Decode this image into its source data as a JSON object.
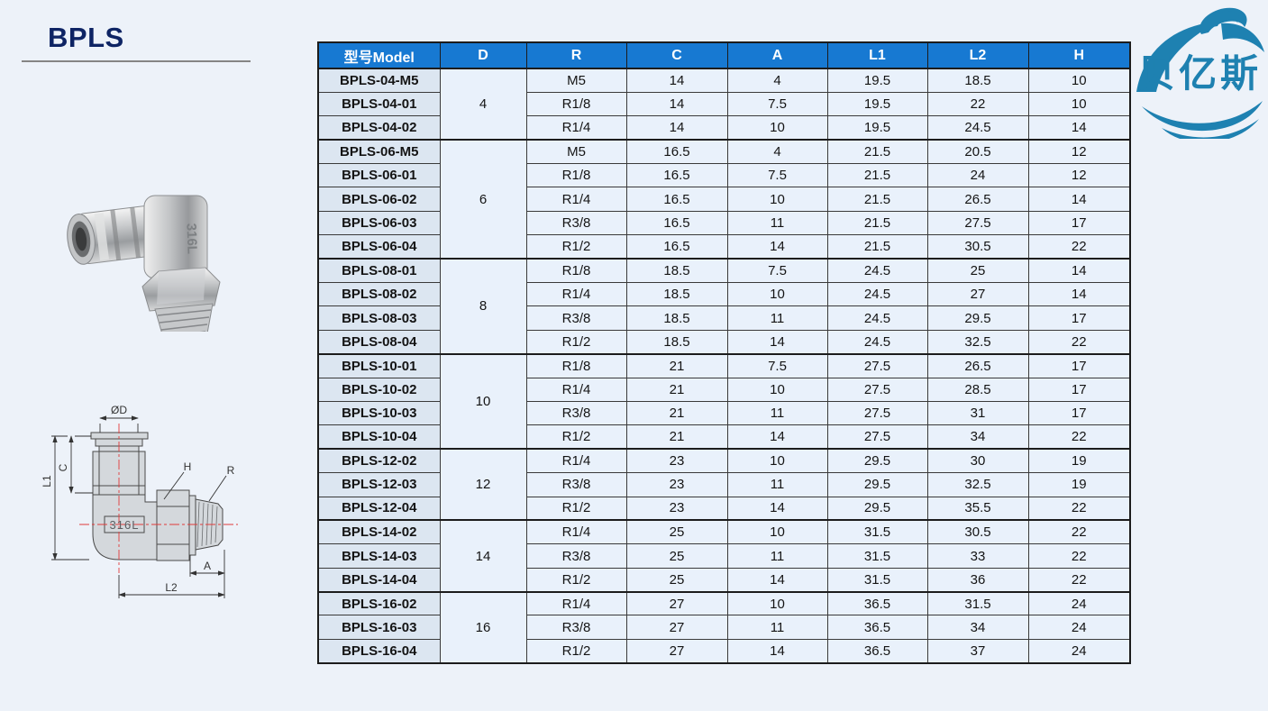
{
  "page": {
    "title": "BPLS"
  },
  "logo": {
    "text": "贝亿斯"
  },
  "photo": {
    "marking": "316L"
  },
  "drawing": {
    "labels": {
      "diameter": "ØD",
      "c": "C",
      "l1": "L1",
      "h": "H",
      "r": "R",
      "a": "A",
      "l2": "L2",
      "marking": "316L"
    }
  },
  "colors": {
    "page_bg": "#edf2f9",
    "title": "#0e2464",
    "underline": "#858585",
    "header_bg": "#1779d2",
    "header_text": "#ffffff",
    "model_bg": "#dce6f1",
    "cell_bg": "#e9f1fb",
    "border": "#3a3a3a",
    "logo": "#1e81b1",
    "centerline": "#e03a3a"
  },
  "table": {
    "headers": [
      "型号Model",
      "D",
      "R",
      "C",
      "A",
      "L1",
      "L2",
      "H"
    ],
    "groups": [
      {
        "d": "4",
        "rows": [
          {
            "model": "BPLS-04-M5",
            "r": "M5",
            "c": "14",
            "a": "4",
            "l1": "19.5",
            "l2": "18.5",
            "h": "10"
          },
          {
            "model": "BPLS-04-01",
            "r": "R1/8",
            "c": "14",
            "a": "7.5",
            "l1": "19.5",
            "l2": "22",
            "h": "10"
          },
          {
            "model": "BPLS-04-02",
            "r": "R1/4",
            "c": "14",
            "a": "10",
            "l1": "19.5",
            "l2": "24.5",
            "h": "14"
          }
        ]
      },
      {
        "d": "6",
        "rows": [
          {
            "model": "BPLS-06-M5",
            "r": "M5",
            "c": "16.5",
            "a": "4",
            "l1": "21.5",
            "l2": "20.5",
            "h": "12"
          },
          {
            "model": "BPLS-06-01",
            "r": "R1/8",
            "c": "16.5",
            "a": "7.5",
            "l1": "21.5",
            "l2": "24",
            "h": "12"
          },
          {
            "model": "BPLS-06-02",
            "r": "R1/4",
            "c": "16.5",
            "a": "10",
            "l1": "21.5",
            "l2": "26.5",
            "h": "14"
          },
          {
            "model": "BPLS-06-03",
            "r": "R3/8",
            "c": "16.5",
            "a": "11",
            "l1": "21.5",
            "l2": "27.5",
            "h": "17"
          },
          {
            "model": "BPLS-06-04",
            "r": "R1/2",
            "c": "16.5",
            "a": "14",
            "l1": "21.5",
            "l2": "30.5",
            "h": "22"
          }
        ]
      },
      {
        "d": "8",
        "rows": [
          {
            "model": "BPLS-08-01",
            "r": "R1/8",
            "c": "18.5",
            "a": "7.5",
            "l1": "24.5",
            "l2": "25",
            "h": "14"
          },
          {
            "model": "BPLS-08-02",
            "r": "R1/4",
            "c": "18.5",
            "a": "10",
            "l1": "24.5",
            "l2": "27",
            "h": "14"
          },
          {
            "model": "BPLS-08-03",
            "r": "R3/8",
            "c": "18.5",
            "a": "11",
            "l1": "24.5",
            "l2": "29.5",
            "h": "17"
          },
          {
            "model": "BPLS-08-04",
            "r": "R1/2",
            "c": "18.5",
            "a": "14",
            "l1": "24.5",
            "l2": "32.5",
            "h": "22"
          }
        ]
      },
      {
        "d": "10",
        "rows": [
          {
            "model": "BPLS-10-01",
            "r": "R1/8",
            "c": "21",
            "a": "7.5",
            "l1": "27.5",
            "l2": "26.5",
            "h": "17"
          },
          {
            "model": "BPLS-10-02",
            "r": "R1/4",
            "c": "21",
            "a": "10",
            "l1": "27.5",
            "l2": "28.5",
            "h": "17"
          },
          {
            "model": "BPLS-10-03",
            "r": "R3/8",
            "c": "21",
            "a": "11",
            "l1": "27.5",
            "l2": "31",
            "h": "17"
          },
          {
            "model": "BPLS-10-04",
            "r": "R1/2",
            "c": "21",
            "a": "14",
            "l1": "27.5",
            "l2": "34",
            "h": "22"
          }
        ]
      },
      {
        "d": "12",
        "rows": [
          {
            "model": "BPLS-12-02",
            "r": "R1/4",
            "c": "23",
            "a": "10",
            "l1": "29.5",
            "l2": "30",
            "h": "19"
          },
          {
            "model": "BPLS-12-03",
            "r": "R3/8",
            "c": "23",
            "a": "11",
            "l1": "29.5",
            "l2": "32.5",
            "h": "19"
          },
          {
            "model": "BPLS-12-04",
            "r": "R1/2",
            "c": "23",
            "a": "14",
            "l1": "29.5",
            "l2": "35.5",
            "h": "22"
          }
        ]
      },
      {
        "d": "14",
        "rows": [
          {
            "model": "BPLS-14-02",
            "r": "R1/4",
            "c": "25",
            "a": "10",
            "l1": "31.5",
            "l2": "30.5",
            "h": "22"
          },
          {
            "model": "BPLS-14-03",
            "r": "R3/8",
            "c": "25",
            "a": "11",
            "l1": "31.5",
            "l2": "33",
            "h": "22"
          },
          {
            "model": "BPLS-14-04",
            "r": "R1/2",
            "c": "25",
            "a": "14",
            "l1": "31.5",
            "l2": "36",
            "h": "22"
          }
        ]
      },
      {
        "d": "16",
        "rows": [
          {
            "model": "BPLS-16-02",
            "r": "R1/4",
            "c": "27",
            "a": "10",
            "l1": "36.5",
            "l2": "31.5",
            "h": "24"
          },
          {
            "model": "BPLS-16-03",
            "r": "R3/8",
            "c": "27",
            "a": "11",
            "l1": "36.5",
            "l2": "34",
            "h": "24"
          },
          {
            "model": "BPLS-16-04",
            "r": "R1/2",
            "c": "27",
            "a": "14",
            "l1": "36.5",
            "l2": "37",
            "h": "24"
          }
        ]
      }
    ]
  }
}
